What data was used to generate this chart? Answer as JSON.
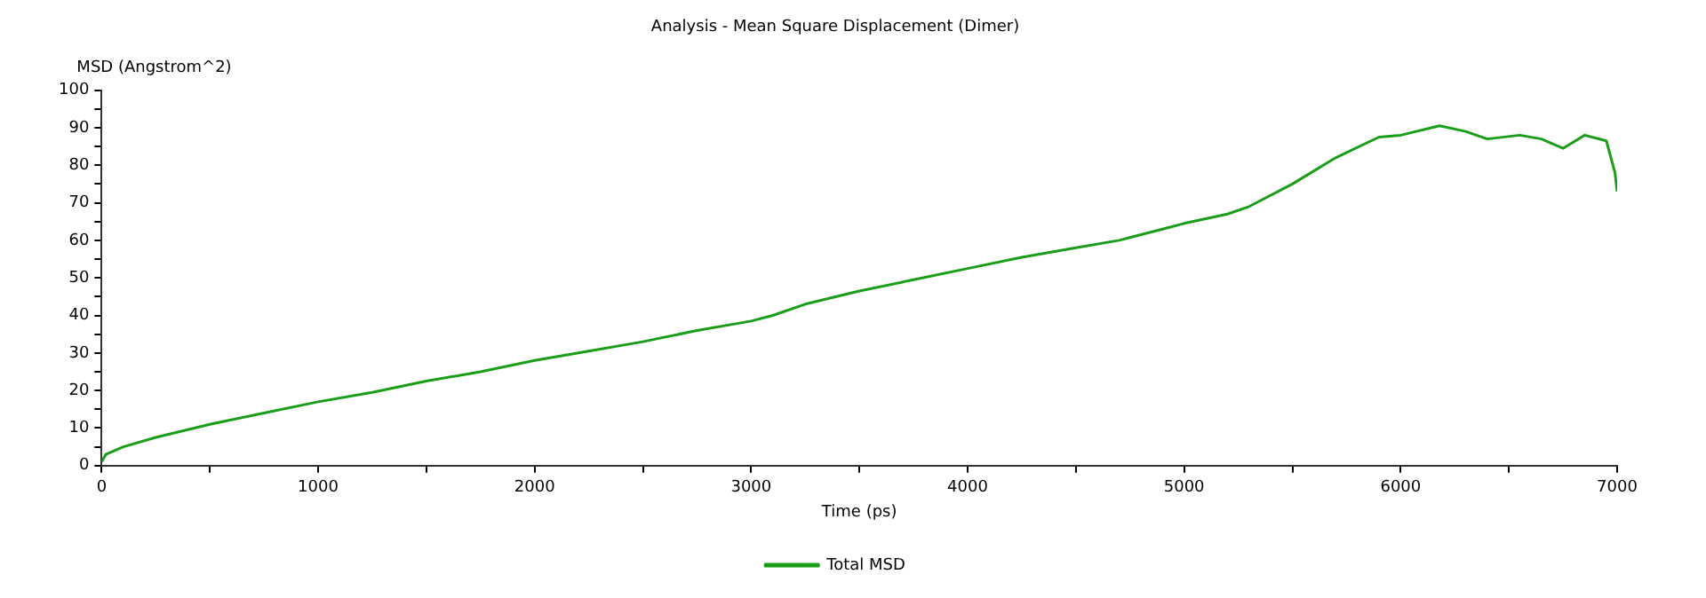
{
  "chart_data": {
    "type": "line",
    "title": "Analysis - Mean Square Displacement (Dimer)",
    "xlabel": "Time (ps)",
    "ylabel": "MSD (Angstrom^2)",
    "x": [
      0,
      20,
      100,
      250,
      500,
      750,
      1000,
      1250,
      1500,
      1750,
      2000,
      2250,
      2500,
      2750,
      3000,
      3100,
      3250,
      3500,
      3750,
      4000,
      4250,
      4500,
      4700,
      4900,
      5000,
      5200,
      5300,
      5500,
      5700,
      5900,
      6000,
      6180,
      6300,
      6400,
      6550,
      6650,
      6750,
      6850,
      6950,
      6990,
      7000
    ],
    "series": [
      {
        "name": "Total MSD",
        "color": "#1a9e1a",
        "values": [
          1,
          3,
          5,
          7.5,
          11,
          14,
          17,
          19.5,
          22.5,
          25,
          28,
          30.5,
          33,
          36,
          38.5,
          40,
          43,
          46.5,
          49.5,
          52.5,
          55.5,
          58,
          60,
          63,
          64.5,
          67,
          69,
          75,
          82,
          87.5,
          88,
          90.5,
          89,
          87,
          88,
          87,
          84.5,
          88,
          86.5,
          78,
          73
        ]
      }
    ],
    "xlim": [
      0,
      7000
    ],
    "xticks": [
      0,
      {
        "value": 500,
        "label": null
      },
      1000,
      {
        "value": 1500,
        "label": null
      },
      2000,
      {
        "value": 2500,
        "label": null
      },
      3000,
      {
        "value": 3500,
        "label": null
      },
      4000,
      {
        "value": 4500,
        "label": null
      },
      5000,
      {
        "value": 5500,
        "label": null
      },
      6000,
      {
        "value": 6500,
        "label": null
      },
      7000
    ],
    "ylim": [
      0,
      100
    ],
    "yticks": [
      0,
      {
        "value": 5,
        "label": null
      },
      10,
      {
        "value": 15,
        "label": null
      },
      20,
      {
        "value": 25,
        "label": null
      },
      30,
      {
        "value": 35,
        "label": null
      },
      40,
      {
        "value": 45,
        "label": null
      },
      50,
      {
        "value": 55,
        "label": null
      },
      60,
      {
        "value": 65,
        "label": null
      },
      70,
      {
        "value": 75,
        "label": null
      },
      80,
      {
        "value": 85,
        "label": null
      },
      90,
      {
        "value": 95,
        "label": null
      },
      100
    ],
    "grid": false,
    "legend": "bottom",
    "line_style": "solid"
  }
}
